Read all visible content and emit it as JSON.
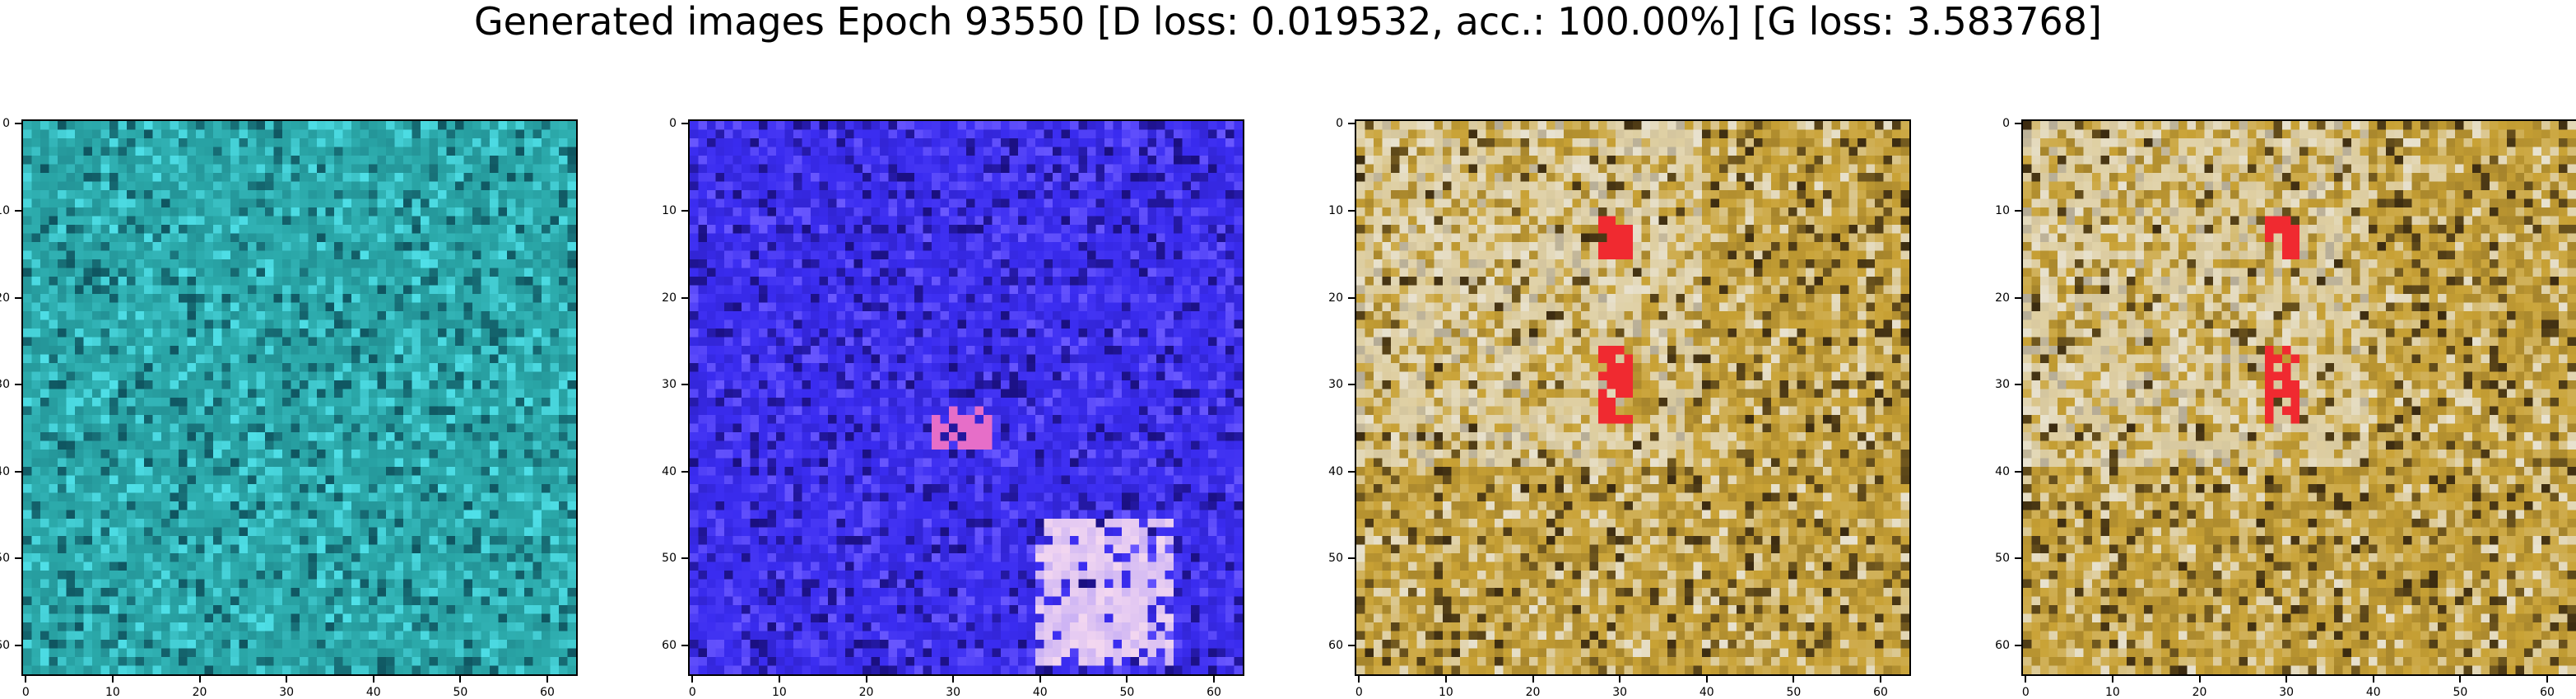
{
  "title": "Generated images Epoch 93550 [D loss: 0.019532, acc.: 100.00%] [G loss: 3.583768]",
  "axis": {
    "x_ticks": [
      "0",
      "10",
      "20",
      "30",
      "40",
      "50",
      "60"
    ],
    "y_ticks": [
      "0",
      "10",
      "20",
      "30",
      "40",
      "50",
      "60"
    ],
    "range": [
      0,
      63
    ]
  },
  "images": [
    {
      "name": "teal",
      "base": "#2aa7a8",
      "dark": "#0f5560",
      "light": "#4fe0e8",
      "accent": "#ffffff"
    },
    {
      "name": "blue",
      "base": "#3a2cf0",
      "dark": "#1a0f80",
      "light": "#6a58ff",
      "accent": "#f4d8f0"
    },
    {
      "name": "gold-1",
      "base": "#c9a235",
      "dark": "#3a2a10",
      "light": "#e8e2d0",
      "accent": "#f02a30"
    },
    {
      "name": "gold-2",
      "base": "#c9a235",
      "dark": "#3a2a10",
      "light": "#e8e2d0",
      "accent": "#f02a30"
    }
  ]
}
